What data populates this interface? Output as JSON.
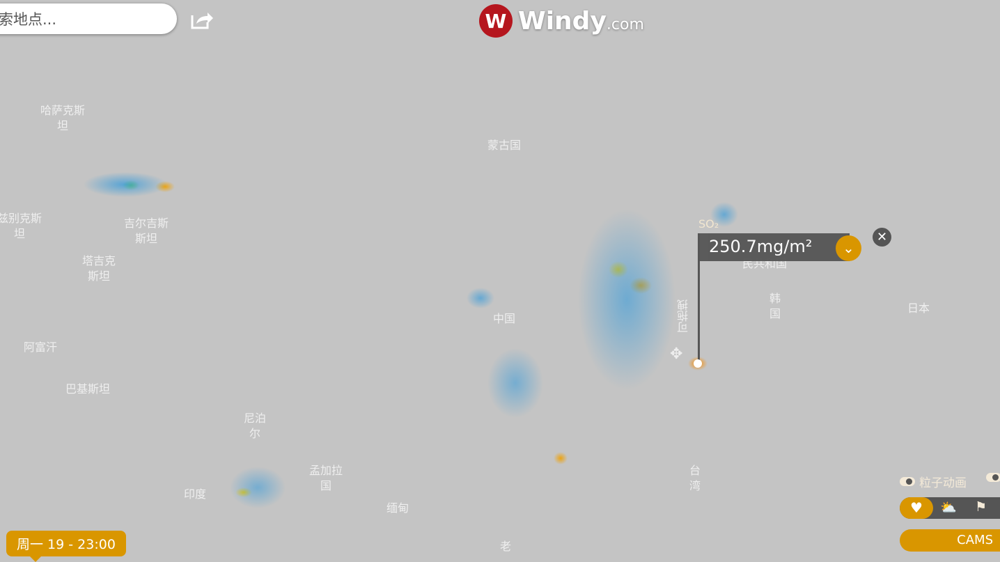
{
  "search": {
    "placeholder": "索地点..."
  },
  "logo": {
    "name": "Windy",
    "suffix": ".com"
  },
  "map_labels": [
    {
      "text": "哈萨克斯\n坦"
    },
    {
      "text": "蒙古国"
    },
    {
      "text": "兹别克斯\n坦"
    },
    {
      "text": "吉尔吉斯\n斯坦"
    },
    {
      "text": "塔吉克\n斯坦"
    },
    {
      "text": "阿富汗"
    },
    {
      "text": "巴基斯坦"
    },
    {
      "text": "中国"
    },
    {
      "text": "尼泊\n尔"
    },
    {
      "text": "孟加拉\n国"
    },
    {
      "text": "印度"
    },
    {
      "text": "缅甸"
    },
    {
      "text": "老"
    },
    {
      "text": "韩\n国"
    },
    {
      "text": "日本"
    },
    {
      "text": "台\n湾"
    },
    {
      "text": "民共和国"
    }
  ],
  "picker": {
    "layer": "SO₂",
    "value": "250.7mg/m²",
    "drag_hint": "可拖拽"
  },
  "timeline": {
    "current": "周一 19 - 23:00"
  },
  "controls": {
    "particles_label": "粒子动画",
    "model": "CAMS"
  },
  "colors": {
    "accent": "#d99600",
    "panel": "#555555",
    "map": "#c4c4c4"
  }
}
